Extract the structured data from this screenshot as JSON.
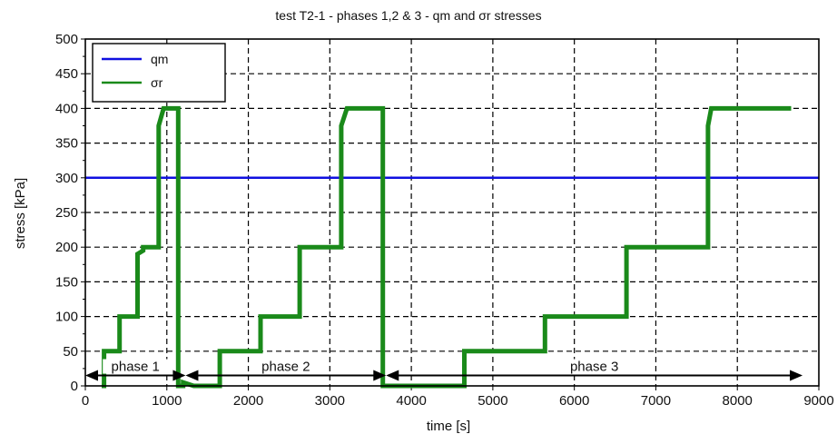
{
  "chart_data": {
    "type": "line",
    "title": "test T2-1 - phases 1,2 & 3 - qm and σr stresses",
    "xlabel": "time [s]",
    "ylabel": "stress [kPa]",
    "xlim": [
      0,
      9000
    ],
    "ylim": [
      0,
      500
    ],
    "xticks": [
      0,
      1000,
      2000,
      3000,
      4000,
      5000,
      6000,
      7000,
      8000,
      9000
    ],
    "yticks": [
      0,
      50,
      100,
      150,
      200,
      250,
      300,
      350,
      400,
      450,
      500
    ],
    "x_tick_labels": [
      "0",
      "1000",
      "2000",
      "3000",
      "4000",
      "5000",
      "6000",
      "7000",
      "8000",
      "9000"
    ],
    "y_tick_labels": [
      "0",
      "50",
      "100",
      "150",
      "200",
      "250",
      "300",
      "350",
      "400",
      "450",
      "500"
    ],
    "grid": true,
    "legend": {
      "placement": "top-left",
      "entries": [
        {
          "label": "qm",
          "color": "#1010e0"
        },
        {
          "label": "σr",
          "color": "#1a8a1a"
        }
      ]
    },
    "series": [
      {
        "name": "qm",
        "color": "#1010e0",
        "x": [
          0,
          9000
        ],
        "y": [
          300,
          300
        ]
      },
      {
        "name": "σr",
        "color": "#1a8a1a",
        "x": [
          200,
          230,
          230,
          420,
          420,
          640,
          640,
          710,
          710,
          900,
          900,
          960,
          960,
          1140,
          1140,
          1200,
          1200,
          1330,
          1330,
          1650,
          1650,
          1710,
          1710,
          2150,
          2150,
          2210,
          2210,
          2630,
          2630,
          2690,
          2690,
          3140,
          3140,
          3210,
          3210,
          3650,
          3650,
          3700,
          3700,
          4650,
          4650,
          4690,
          4690,
          5640,
          5640,
          5680,
          5680,
          6640,
          6640,
          6680,
          6680,
          7640,
          7640,
          7680,
          7680,
          8660
        ],
        "y": [
          0,
          0,
          50,
          50,
          100,
          100,
          190,
          195,
          200,
          200,
          375,
          400,
          400,
          400,
          0,
          0,
          5,
          0,
          0,
          0,
          50,
          50,
          50,
          50,
          100,
          100,
          100,
          100,
          200,
          200,
          200,
          200,
          375,
          400,
          400,
          400,
          0,
          0,
          0,
          0,
          50,
          50,
          50,
          50,
          100,
          100,
          100,
          100,
          200,
          200,
          200,
          200,
          375,
          400,
          400,
          400
        ]
      }
    ],
    "annotations": [
      {
        "text": "phase 1",
        "x_start": 0,
        "x_end": 1230,
        "y": 15
      },
      {
        "text": "phase 2",
        "x_start": 1230,
        "x_end": 3690,
        "y": 15
      },
      {
        "text": "phase 3",
        "x_start": 3690,
        "x_end": 8800,
        "y": 15
      }
    ]
  }
}
